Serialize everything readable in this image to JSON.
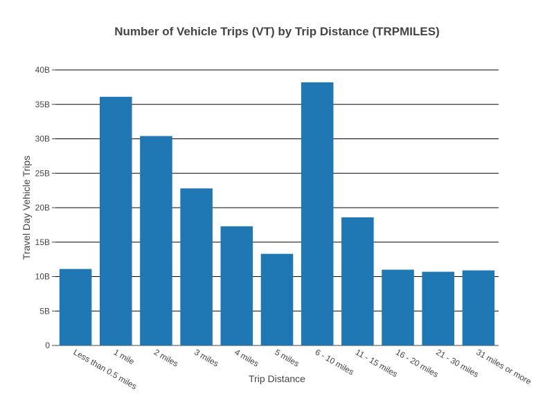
{
  "chart_data": {
    "type": "bar",
    "title": "Number of Vehicle Trips (VT) by Trip Distance (TRPMILES)",
    "xlabel": "Trip Distance",
    "ylabel": "Travel Day Vehicle Trips",
    "categories": [
      "Less than 0.5 miles",
      "1 mile",
      "2 miles",
      "3 miles",
      "4 miles",
      "5 miles",
      "6 - 10 miles",
      "11 - 15 miles",
      "16 - 20 miles",
      "21 - 30 miles",
      "31 miles or more"
    ],
    "values": [
      11.1,
      36.1,
      30.4,
      22.8,
      17.3,
      13.3,
      38.2,
      18.6,
      11.0,
      10.7,
      10.9
    ],
    "value_unit": "billions",
    "ylim": [
      0,
      40
    ],
    "yticks": [
      0,
      5,
      10,
      15,
      20,
      25,
      30,
      35,
      40
    ],
    "ytick_labels": [
      "0",
      "5B",
      "10B",
      "15B",
      "20B",
      "25B",
      "30B",
      "35B",
      "40B"
    ],
    "grid": true,
    "legend": "none",
    "bar_color": "#1f77b4"
  }
}
